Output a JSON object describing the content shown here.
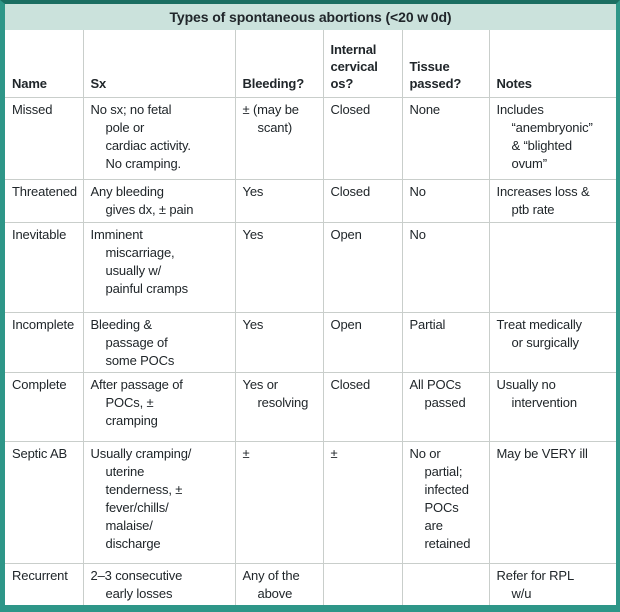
{
  "title": "Types of spontaneous abortions (<20 w 0d)",
  "table": {
    "headers": [
      "Name",
      "Sx",
      "Bleeding?",
      "Internal\ncervical\nos?",
      "Tissue\npassed?",
      "Notes"
    ],
    "rows": [
      [
        "Missed",
        "No sx; no fetal\npole or\ncardiac activity.\nNo cramping.",
        "± (may be\nscant)",
        "Closed",
        "None",
        "Includes\n“anembryonic”\n& “blighted\novum”"
      ],
      [
        "Threatened",
        "Any bleeding\ngives dx, ± pain",
        "Yes",
        "Closed",
        "No",
        "Increases loss &\nptb rate"
      ],
      [
        "Inevitable",
        "Imminent\nmiscarriage,\nusually w/\npainful cramps",
        "Yes",
        "Open",
        "No",
        ""
      ],
      [
        "Incomplete",
        "Bleeding &\npassage of\nsome POCs",
        "Yes",
        "Open",
        "Partial",
        "Treat medically\nor surgically"
      ],
      [
        "Complete",
        "After passage of\nPOCs, ±\ncramping",
        "Yes or\nresolving",
        "Closed",
        "All POCs\npassed",
        "Usually no\nintervention"
      ],
      [
        "Septic AB",
        "Usually cramping/\nuterine\ntenderness, ±\nfever/chills/\nmalaise/\ndischarge",
        "±",
        "±",
        "No or\npartial;\ninfected\nPOCs\nare\nretained",
        "May be VERY ill"
      ],
      [
        "Recurrent",
        "2–3 consecutive\nearly losses",
        "Any of the\nabove",
        "",
        "",
        "Refer for RPL\nw/u"
      ]
    ]
  },
  "colors": {
    "border_teal": "#2e9688",
    "border_teal_dark": "#1b6e62",
    "title_bg": "#cbe2dc",
    "grid_line": "#c9cecb",
    "text": "#20262a"
  }
}
